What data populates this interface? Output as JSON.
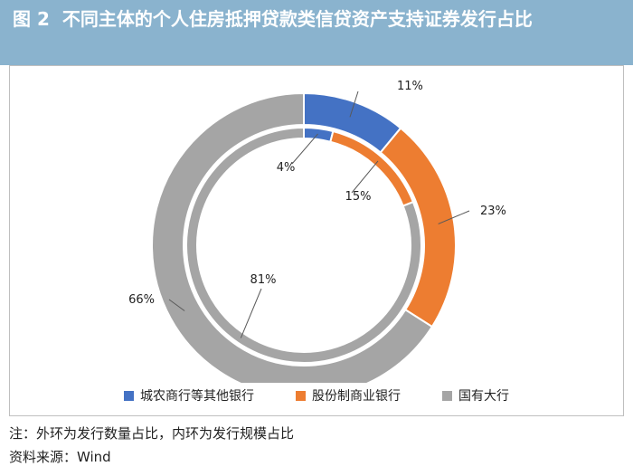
{
  "figure": {
    "number": "图 2",
    "title": "不同主体的个人住房抵押贷款类信贷资产支持证券发行占比"
  },
  "chart_data": {
    "type": "pie",
    "style": "double-donut",
    "categories": [
      "城农商行等其他银行",
      "股份制商业银行",
      "国有大行"
    ],
    "colors": [
      "#4472c4",
      "#ed7d31",
      "#a5a5a5"
    ],
    "series": [
      {
        "ring": "outer",
        "values": [
          11,
          23,
          66
        ],
        "labels": [
          "11%",
          "23%",
          "66%"
        ]
      },
      {
        "ring": "inner",
        "values": [
          4,
          15,
          81
        ],
        "labels": [
          "4%",
          "15%",
          "81%"
        ]
      }
    ],
    "legend_position": "bottom"
  },
  "notes": {
    "note": "注：外环为发行数量占比，内环为发行规模占比",
    "source": "资料来源：Wind"
  }
}
